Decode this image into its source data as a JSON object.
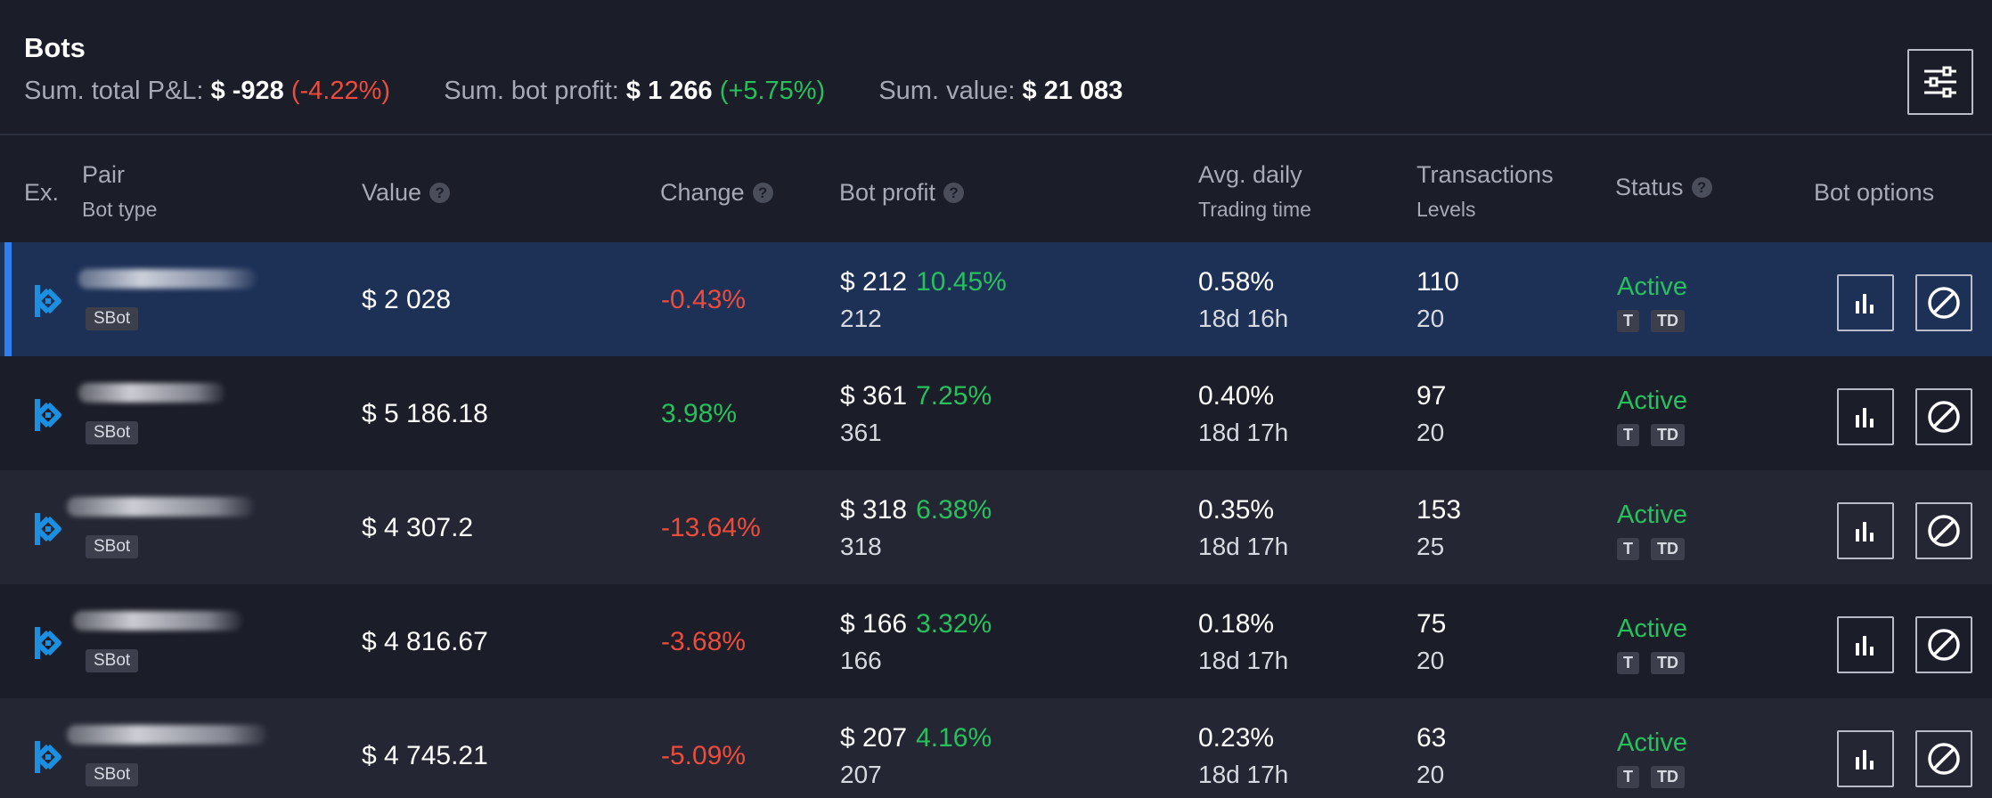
{
  "header": {
    "title": "Bots",
    "pnl_label": "Sum. total P&L:",
    "pnl_value": "$ -928",
    "pnl_pct": "(-4.22%)",
    "profit_label": "Sum. bot profit:",
    "profit_value": "$ 1 266",
    "profit_pct": "(+5.75%)",
    "value_label": "Sum. value:",
    "value_value": "$ 21 083",
    "settings_icon": "sliders-icon"
  },
  "columns": {
    "ex": "Ex.",
    "pair": "Pair",
    "bot_type": "Bot type",
    "value": "Value",
    "change": "Change",
    "bot_profit": "Bot profit",
    "avg_daily": "Avg. daily",
    "trading_time": "Trading time",
    "transactions": "Transactions",
    "levels": "Levels",
    "status": "Status",
    "bot_options": "Bot options",
    "help_glyph": "?"
  },
  "rows": [
    {
      "bot_type": "SBot",
      "value": "$ 2 028",
      "change": "-0.43%",
      "profit": "$ 212",
      "profit_pct": "10.45%",
      "profit_sub": "212",
      "avg_daily": "0.58%",
      "trading_time": "18d 16h",
      "transactions": "110",
      "levels": "20",
      "status": "Active",
      "tag1": "T",
      "tag2": "TD"
    },
    {
      "bot_type": "SBot",
      "value": "$ 5 186.18",
      "change": "3.98%",
      "profit": "$ 361",
      "profit_pct": "7.25%",
      "profit_sub": "361",
      "avg_daily": "0.40%",
      "trading_time": "18d 17h",
      "transactions": "97",
      "levels": "20",
      "status": "Active",
      "tag1": "T",
      "tag2": "TD"
    },
    {
      "bot_type": "SBot",
      "value": "$ 4 307.2",
      "change": "-13.64%",
      "profit": "$ 318",
      "profit_pct": "6.38%",
      "profit_sub": "318",
      "avg_daily": "0.35%",
      "trading_time": "18d 17h",
      "transactions": "153",
      "levels": "25",
      "status": "Active",
      "tag1": "T",
      "tag2": "TD"
    },
    {
      "bot_type": "SBot",
      "value": "$ 4 816.67",
      "change": "-3.68%",
      "profit": "$ 166",
      "profit_pct": "3.32%",
      "profit_sub": "166",
      "avg_daily": "0.18%",
      "trading_time": "18d 17h",
      "transactions": "75",
      "levels": "20",
      "status": "Active",
      "tag1": "T",
      "tag2": "TD"
    },
    {
      "bot_type": "SBot",
      "value": "$ 4 745.21",
      "change": "-5.09%",
      "profit": "$ 207",
      "profit_pct": "4.16%",
      "profit_sub": "207",
      "avg_daily": "0.23%",
      "trading_time": "18d 17h",
      "transactions": "63",
      "levels": "20",
      "status": "Active",
      "tag1": "T",
      "tag2": "TD"
    }
  ],
  "icons": {
    "exchange": "kucoin-logo-icon",
    "stats": "bar-chart-icon",
    "stop": "stop-icon"
  },
  "colors": {
    "background": "#1b1d28",
    "selected_row": "#1d3157",
    "alt_row": "#242733",
    "selection_bar": "#2f7ff0",
    "positive": "#27c05c",
    "negative": "#ec4c3c",
    "muted_text": "#a6a9b6"
  }
}
